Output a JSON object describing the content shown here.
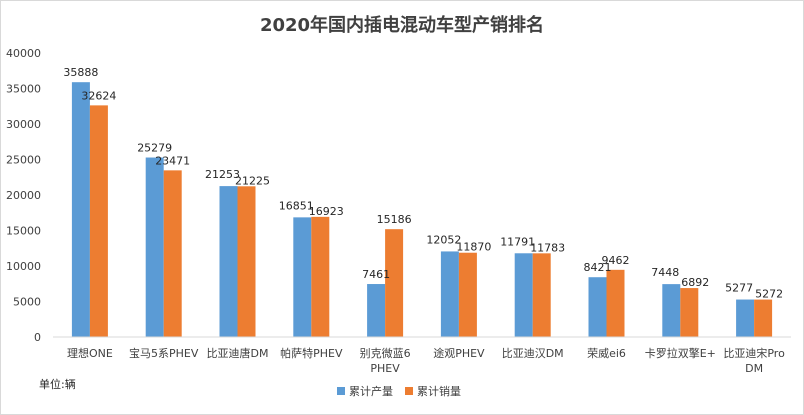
{
  "chart_data": {
    "type": "bar",
    "title": "2020年国内插电混动车型产销排名",
    "unit_label": "单位:辆",
    "categories": [
      "理想ONE",
      "宝马5系PHEV",
      "比亚迪唐DM",
      "帕萨特PHEV",
      "别克微蓝6 PHEV",
      "途观PHEV",
      "比亚迪汉DM",
      "荣威ei6",
      "卡罗拉双擎E+",
      "比亚迪宋Pro DM"
    ],
    "series": [
      {
        "name": "累计产量",
        "color": "#5b9bd5",
        "values": [
          35888,
          25279,
          21253,
          16851,
          7461,
          12052,
          11791,
          8421,
          7448,
          5277
        ]
      },
      {
        "name": "累计销量",
        "color": "#ed7d31",
        "values": [
          32624,
          23471,
          21225,
          16923,
          15186,
          11870,
          11783,
          9462,
          6892,
          5272
        ]
      }
    ],
    "ylim": [
      0,
      40000
    ],
    "yticks": [
      0,
      5000,
      10000,
      15000,
      20000,
      25000,
      30000,
      35000,
      40000
    ],
    "grid": false,
    "legend": "bottom"
  }
}
